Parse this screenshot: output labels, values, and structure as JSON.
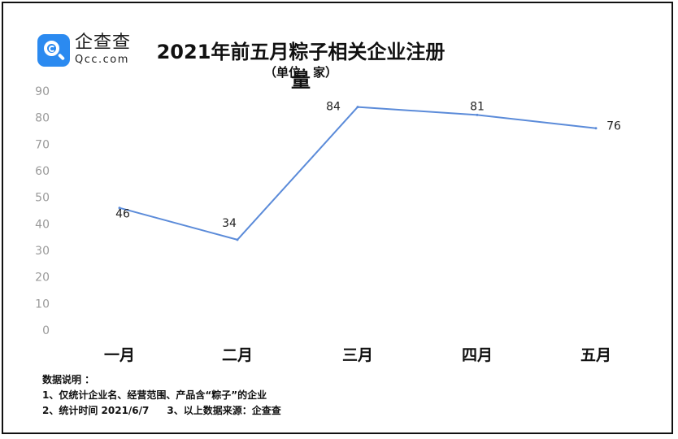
{
  "header": {
    "logo_cn": "企查查",
    "logo_en": "Qcc.com",
    "title": "2021年前五月粽子相关企业注册量",
    "subtitle": "（单位：家）"
  },
  "chart_data": {
    "type": "line",
    "title": "2021年前五月粽子相关企业注册量",
    "subtitle": "（单位：家）",
    "categories": [
      "一月",
      "二月",
      "三月",
      "四月",
      "五月"
    ],
    "values": [
      46,
      34,
      84,
      81,
      76
    ],
    "data_labels": [
      "46",
      "34",
      "84",
      "81",
      "76"
    ],
    "ylim": [
      0,
      90
    ],
    "yticks": [
      0,
      10,
      20,
      30,
      40,
      50,
      60,
      70,
      80,
      90
    ],
    "ytick_labels": [
      "0",
      "10",
      "20",
      "30",
      "40",
      "50",
      "60",
      "70",
      "80",
      "90"
    ],
    "xlabel": "",
    "ylabel": "",
    "grid": false,
    "line_color": "#5b8bd9"
  },
  "notes": {
    "heading": "数据说明 ：",
    "line1": "1、仅统计企业名、经营范围、产品含“粽子”的企业",
    "line2a": "2、统计时间  2021/6/7",
    "line2b": "3、以上数据来源：企查查"
  }
}
